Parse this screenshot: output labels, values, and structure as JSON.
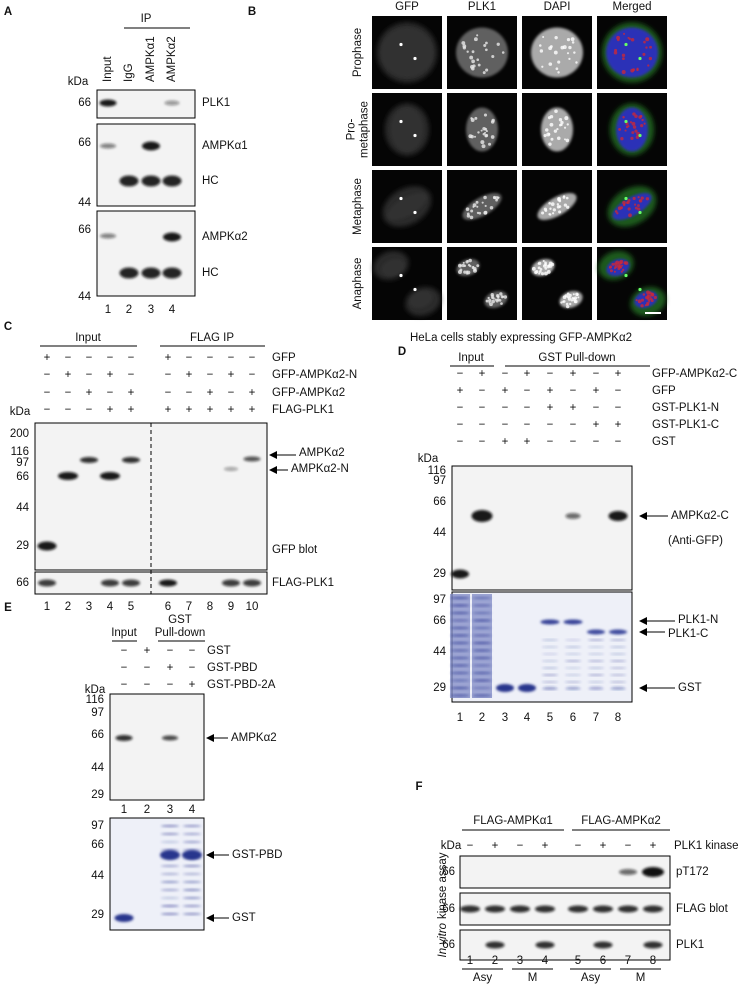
{
  "panel_a": {
    "letter": "A",
    "ip": "IP",
    "kda": "kDa",
    "lanes": [
      "Input",
      "IgG",
      "AMPKα1",
      "AMPKα2"
    ],
    "blots": [
      {
        "markers": [
          "66"
        ],
        "labels": [
          "PLK1"
        ]
      },
      {
        "markers": [
          "66",
          "44"
        ],
        "labels": [
          "AMPKα1",
          "HC"
        ]
      },
      {
        "markers": [
          "66",
          "44"
        ],
        "labels": [
          "AMPKα2",
          "HC"
        ]
      }
    ],
    "lane_numbers": [
      "1",
      "2",
      "3",
      "4"
    ]
  },
  "panel_b": {
    "letter": "B",
    "columns": [
      "GFP",
      "PLK1",
      "DAPI",
      "Merged"
    ],
    "rows": [
      [
        "Prophase"
      ],
      [
        "Pro-",
        "metaphase"
      ],
      [
        "Metaphase"
      ],
      [
        "Anaphase"
      ]
    ],
    "caption": "HeLa cells stably expressing GFP-AMPKα2"
  },
  "panel_c": {
    "letter": "C",
    "groups": [
      "Input",
      "FLAG IP"
    ],
    "kda": "kDa",
    "conditions": [
      {
        "name": "GFP",
        "signs": [
          "+",
          "−",
          "−",
          "−",
          "−",
          "+",
          "−",
          "−",
          "−",
          "−"
        ]
      },
      {
        "name": "GFP-AMPKα2-N",
        "signs": [
          "−",
          "+",
          "−",
          "+",
          "−",
          "−",
          "+",
          "−",
          "+",
          "−"
        ]
      },
      {
        "name": "GFP-AMPKα2",
        "signs": [
          "−",
          "−",
          "+",
          "−",
          "+",
          "−",
          "−",
          "+",
          "−",
          "+"
        ]
      },
      {
        "name": "FLAG-PLK1",
        "signs": [
          "−",
          "−",
          "−",
          "+",
          "+",
          "+",
          "+",
          "+",
          "+",
          "+"
        ]
      }
    ],
    "markers": [
      "200",
      "116",
      "97",
      "66",
      "44",
      "29"
    ],
    "bands": [
      "AMPKα2",
      "AMPKα2-N"
    ],
    "blot_label": "GFP blot",
    "lower_markers": [
      "66"
    ],
    "lower_label": "FLAG-PLK1",
    "lane_numbers": [
      "1",
      "2",
      "3",
      "4",
      "5",
      "6",
      "7",
      "8",
      "9",
      "10"
    ]
  },
  "panel_d": {
    "letter": "D",
    "groups": [
      "Input",
      "GST Pull-down"
    ],
    "kda": "kDa",
    "conditions": [
      {
        "name": "GFP-AMPKα2-C",
        "signs": [
          "−",
          "+",
          "−",
          "+",
          "−",
          "+",
          "−",
          "+"
        ]
      },
      {
        "name": "GFP",
        "signs": [
          "+",
          "−",
          "+",
          "−",
          "+",
          "−",
          "+",
          "−"
        ]
      },
      {
        "name": "GST-PLK1-N",
        "signs": [
          "−",
          "−",
          "−",
          "−",
          "+",
          "+",
          "−",
          "−"
        ]
      },
      {
        "name": "GST-PLK1-C",
        "signs": [
          "−",
          "−",
          "−",
          "−",
          "−",
          "−",
          "+",
          "+"
        ]
      },
      {
        "name": "GST",
        "signs": [
          "−",
          "−",
          "+",
          "+",
          "−",
          "−",
          "−",
          "−"
        ]
      }
    ],
    "markers": [
      "116",
      "97",
      "66",
      "44",
      "29"
    ],
    "band_label": "AMPKα2-C",
    "blot_label": "(Anti-GFP)",
    "gel_markers": [
      "97",
      "66",
      "44",
      "29"
    ],
    "gel_labels": [
      "PLK1-N",
      "PLK1-C",
      "GST"
    ],
    "lane_numbers": [
      "1",
      "2",
      "3",
      "4",
      "5",
      "6",
      "7",
      "8"
    ]
  },
  "panel_e": {
    "letter": "E",
    "input": "Input",
    "group": [
      "GST",
      "Pull-down"
    ],
    "kda": "kDa",
    "conditions": [
      {
        "name": "GST",
        "signs": [
          "−",
          "+",
          "−",
          "−"
        ]
      },
      {
        "name": "GST-PBD",
        "signs": [
          "−",
          "−",
          "+",
          "−"
        ]
      },
      {
        "name": "GST-PBD-2A",
        "signs": [
          "−",
          "−",
          "−",
          "+"
        ]
      }
    ],
    "markers": [
      "116",
      "97",
      "66",
      "44",
      "29"
    ],
    "band_label": "AMPKα2",
    "lane_numbers": [
      "1",
      "2",
      "3",
      "4"
    ],
    "gel_markers": [
      "97",
      "66",
      "44",
      "29"
    ],
    "gel_labels": [
      "GST-PBD",
      "GST"
    ]
  },
  "panel_f": {
    "letter": "F",
    "groups": [
      "FLAG-AMPKα1",
      "FLAG-AMPKα2"
    ],
    "kda": "kDa",
    "condition": {
      "name": "PLK1 kinase",
      "signs": [
        "−",
        "+",
        "−",
        "+",
        "−",
        "+",
        "−",
        "+"
      ]
    },
    "blots": [
      {
        "marker": "66",
        "label": "pT172"
      },
      {
        "marker": "66",
        "label": "FLAG blot"
      },
      {
        "marker": "66",
        "label": "PLK1"
      }
    ],
    "lane_numbers": [
      "1",
      "2",
      "3",
      "4",
      "5",
      "6",
      "7",
      "8"
    ],
    "phases": [
      "Asy",
      "M",
      "Asy",
      "M"
    ],
    "side_label": {
      "italic": "In vitro",
      "rest": "kinase assay"
    }
  }
}
